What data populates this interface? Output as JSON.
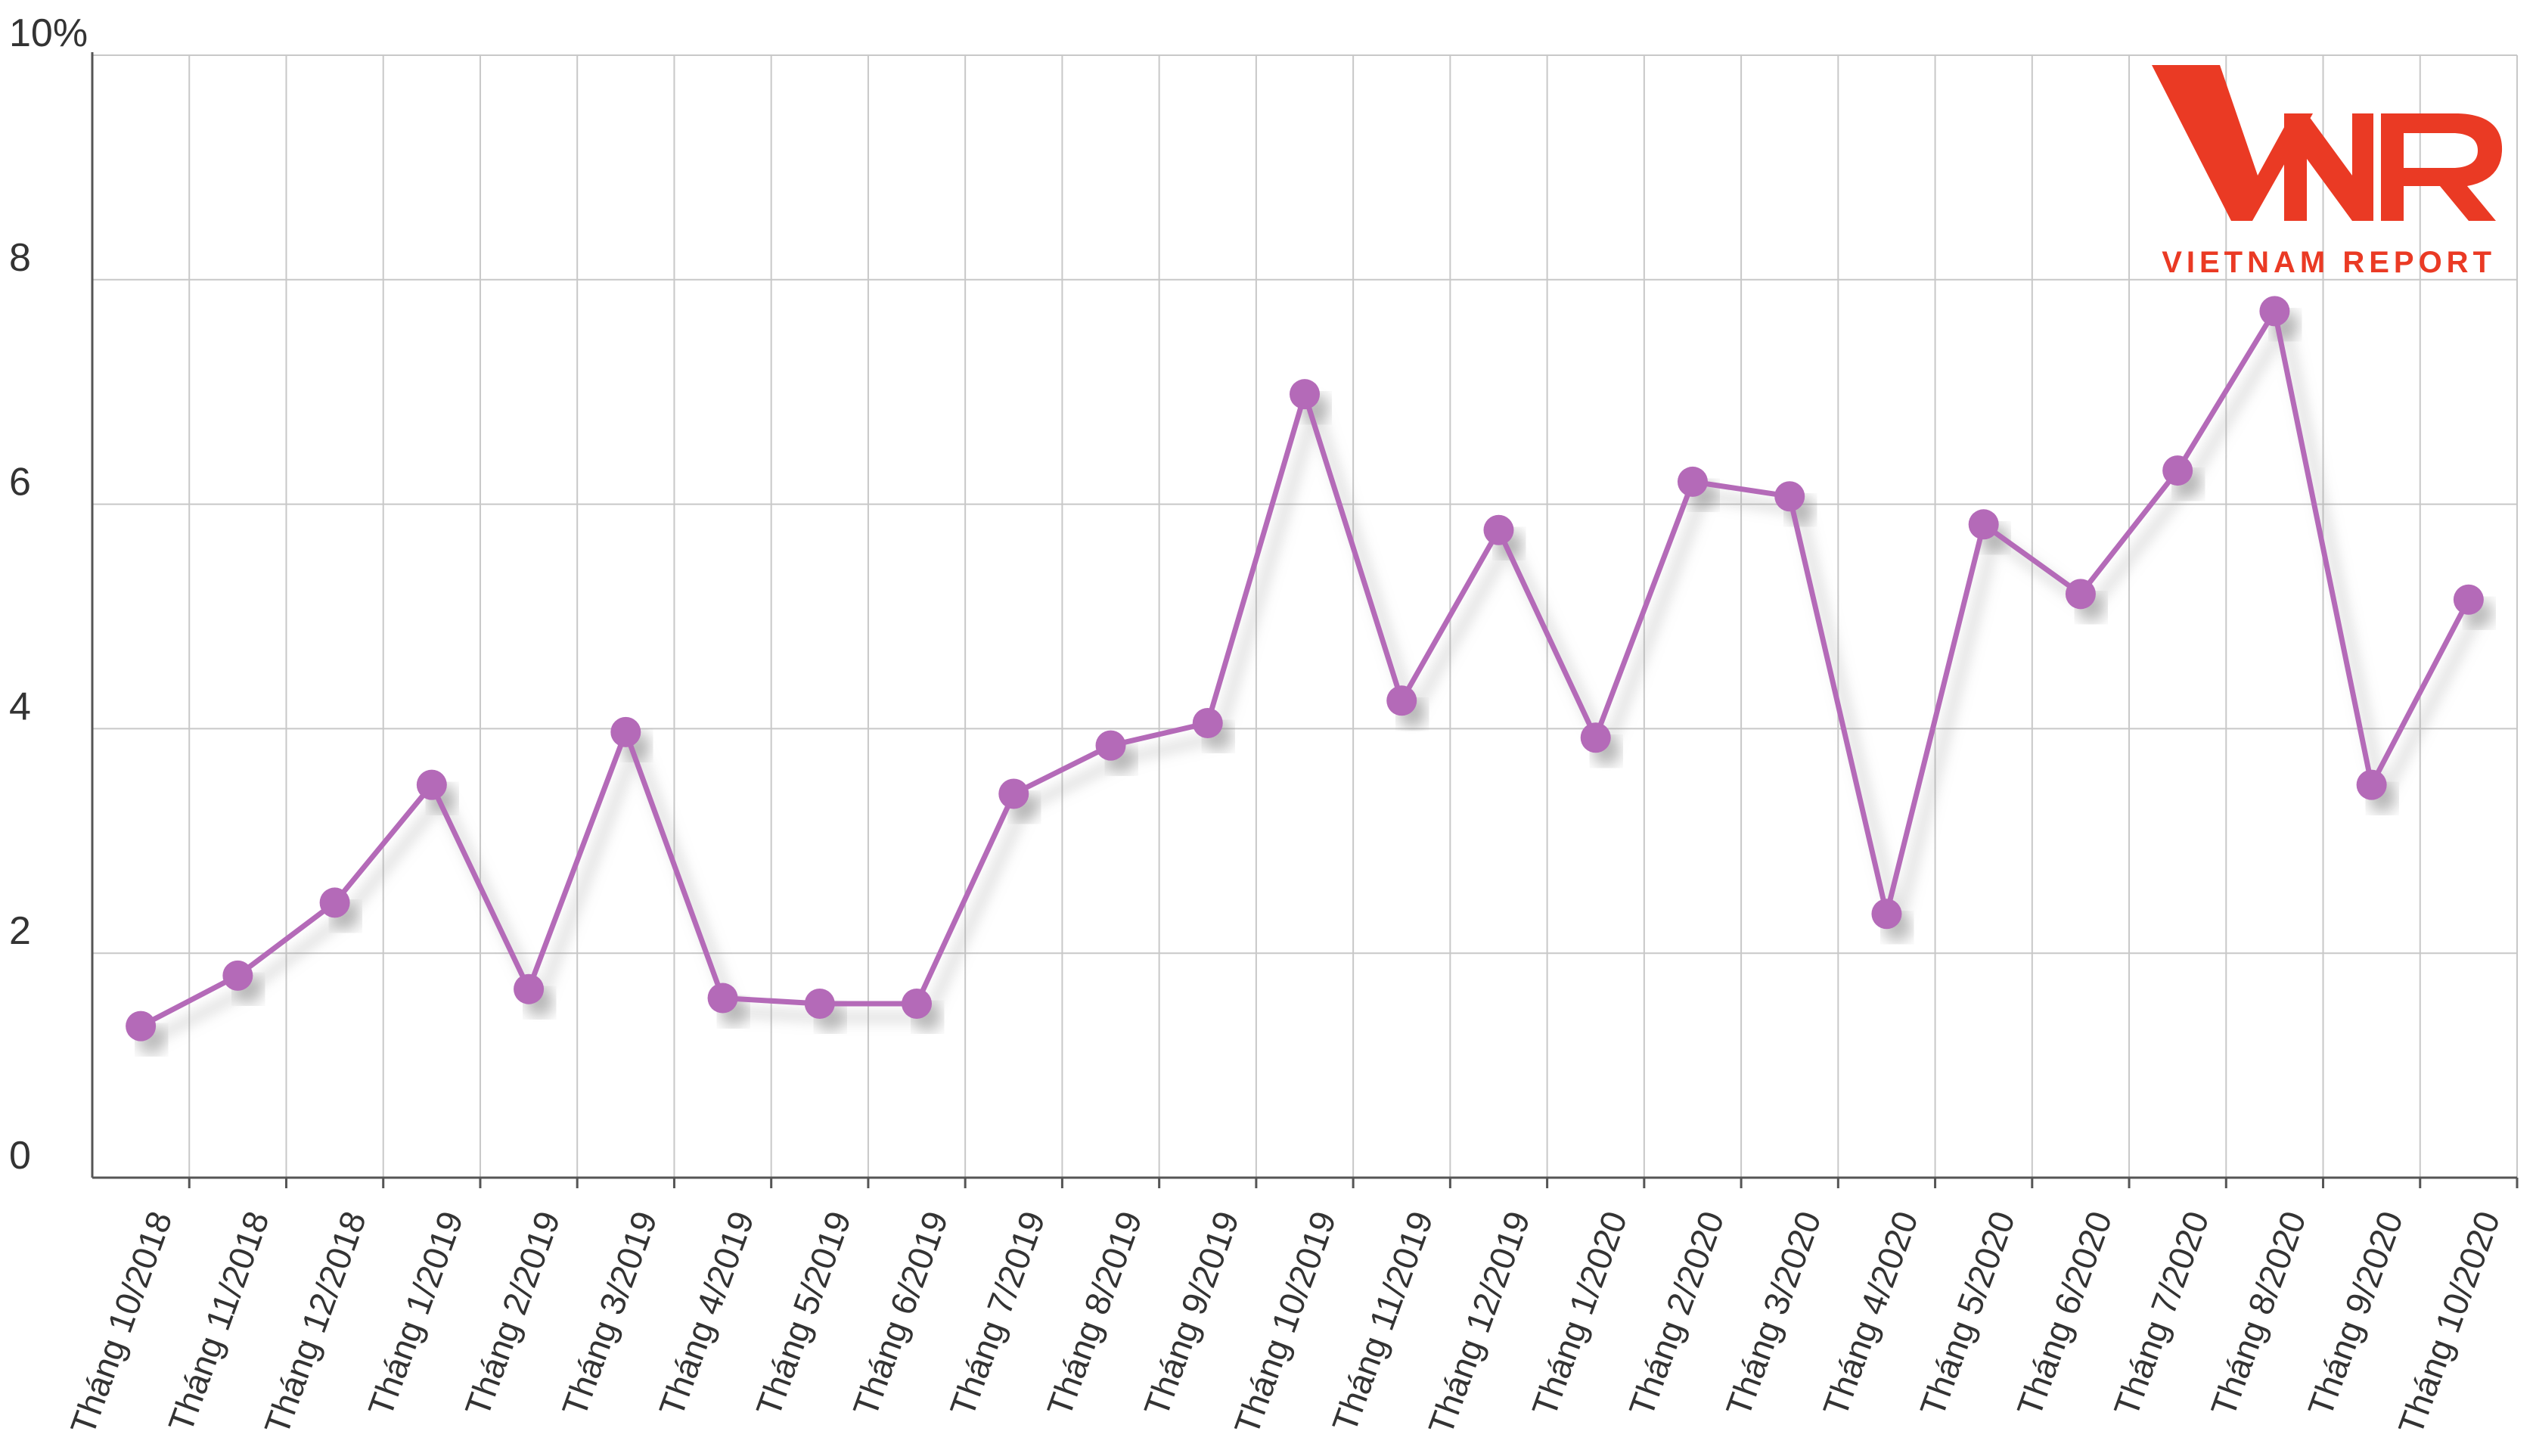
{
  "chart_data": {
    "type": "line",
    "title": "",
    "xlabel": "",
    "ylabel": "",
    "y_unit": "%",
    "ylim": [
      0,
      10
    ],
    "y_ticks": [
      "0",
      "2",
      "4",
      "6",
      "8",
      "10%"
    ],
    "grid": "on",
    "legend": "none",
    "categories": [
      "Tháng 10/2018",
      "Tháng 11/2018",
      "Tháng 12/2018",
      "Tháng 1/2019",
      "Tháng 2/2019",
      "Tháng 3/2019",
      "Tháng 4/2019",
      "Tháng 5/2019",
      "Tháng 6/2019",
      "Tháng 7/2019",
      "Tháng 8/2019",
      "Tháng 9/2019",
      "Tháng 10/2019",
      "Tháng 11/2019",
      "Tháng 12/2019",
      "Tháng 1/2020",
      "Tháng 2/2020",
      "Tháng 3/2020",
      "Tháng 4/2020",
      "Tháng 5/2020",
      "Tháng 6/2020",
      "Tháng 7/2020",
      "Tháng 8/2020",
      "Tháng 9/2020",
      "Tháng 10/2020"
    ],
    "series": [
      {
        "values": [
          1.35,
          1.8,
          2.45,
          3.5,
          1.68,
          3.97,
          1.6,
          1.55,
          1.55,
          3.42,
          3.85,
          4.05,
          6.98,
          4.25,
          5.77,
          3.92,
          6.2,
          6.07,
          2.35,
          5.82,
          5.2,
          6.3,
          7.72,
          3.5,
          5.15
        ]
      }
    ]
  },
  "colors": {
    "series": "#b46ab8",
    "grid": "#c8c8c8",
    "axis": "#555555",
    "logo": "#ea3a24"
  },
  "logo": {
    "mark": "VNR",
    "tagline": "VIETNAM REPORT"
  }
}
